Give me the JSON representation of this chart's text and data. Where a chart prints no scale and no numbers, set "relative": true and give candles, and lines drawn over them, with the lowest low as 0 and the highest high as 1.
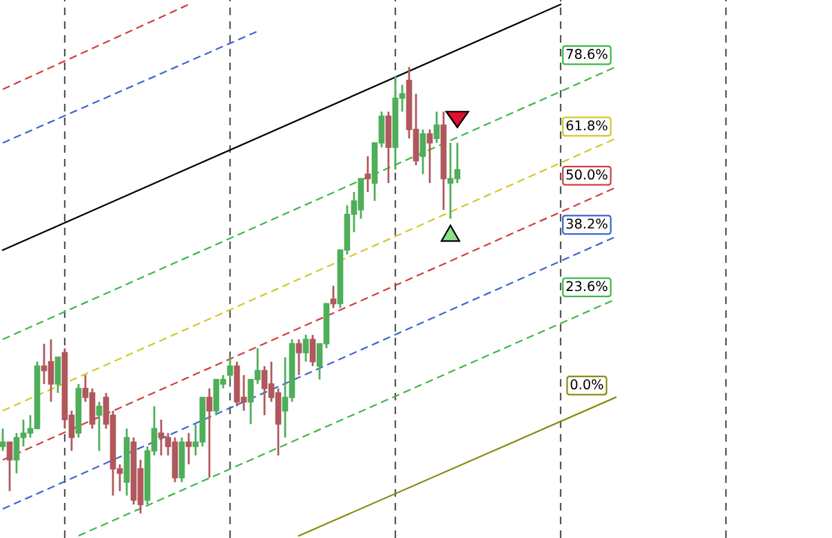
{
  "chart_data": {
    "type": "candlestick",
    "relative": true,
    "grid": "x",
    "legend": false,
    "categories": [
      null,
      null,
      null,
      null,
      null,
      null,
      null,
      null,
      null,
      null,
      null,
      null,
      null,
      null,
      null,
      null,
      null,
      null,
      null,
      null,
      null,
      null,
      null,
      null,
      null,
      null,
      null,
      null,
      null,
      null,
      null,
      null,
      null,
      null,
      null,
      null,
      null,
      null,
      null,
      null,
      null,
      null,
      null,
      null,
      null,
      null,
      null,
      null,
      null,
      null,
      null,
      null,
      null,
      null,
      null,
      null,
      null,
      null,
      null,
      null,
      null,
      null,
      null,
      null,
      null,
      null,
      null,
      null,
      null,
      null,
      null,
      null,
      null,
      null,
      null,
      null,
      null,
      null,
      null,
      null,
      null,
      null,
      null,
      null,
      null,
      null,
      null,
      null,
      null,
      null
    ],
    "ohlc": [
      [
        0.15,
        0.19,
        0.14,
        0.16
      ],
      [
        0.16,
        0.16,
        0.05,
        0.12
      ],
      [
        0.12,
        0.18,
        0.09,
        0.17
      ],
      [
        0.17,
        0.21,
        0.15,
        0.18
      ],
      [
        0.18,
        0.22,
        0.17,
        0.19
      ],
      [
        0.19,
        0.34,
        0.19,
        0.33
      ],
      [
        0.33,
        0.38,
        0.29,
        0.32
      ],
      [
        0.34,
        0.39,
        0.25,
        0.29
      ],
      [
        0.29,
        0.35,
        0.27,
        0.35
      ],
      [
        0.36,
        0.37,
        0.19,
        0.21
      ],
      [
        0.22,
        0.23,
        0.14,
        0.17
      ],
      [
        0.18,
        0.29,
        0.17,
        0.28
      ],
      [
        0.28,
        0.31,
        0.25,
        0.26
      ],
      [
        0.27,
        0.28,
        0.19,
        0.2
      ],
      [
        0.22,
        0.25,
        0.14,
        0.24
      ],
      [
        0.26,
        0.27,
        0.19,
        0.2
      ],
      [
        0.22,
        0.23,
        0.04,
        0.1
      ],
      [
        0.1,
        0.11,
        0.05,
        0.09
      ],
      [
        0.07,
        0.19,
        0.04,
        0.17
      ],
      [
        0.16,
        0.17,
        0.02,
        0.03
      ],
      [
        0.1,
        0.12,
        0.0,
        0.02
      ],
      [
        0.03,
        0.15,
        0.02,
        0.14
      ],
      [
        0.14,
        0.24,
        0.13,
        0.19
      ],
      [
        0.18,
        0.21,
        0.13,
        0.17
      ],
      [
        0.17,
        0.18,
        0.13,
        0.15
      ],
      [
        0.16,
        0.17,
        0.07,
        0.08
      ],
      [
        0.08,
        0.17,
        0.07,
        0.16
      ],
      [
        0.16,
        0.18,
        0.11,
        0.15
      ],
      [
        0.15,
        0.2,
        0.13,
        0.16
      ],
      [
        0.16,
        0.26,
        0.15,
        0.26
      ],
      [
        0.26,
        0.28,
        0.08,
        0.23
      ],
      [
        0.23,
        0.3,
        0.22,
        0.3
      ],
      [
        0.29,
        0.31,
        0.28,
        0.3
      ],
      [
        0.31,
        0.35,
        0.3,
        0.33
      ],
      [
        0.33,
        0.34,
        0.24,
        0.25
      ],
      [
        0.26,
        0.31,
        0.23,
        0.25
      ],
      [
        0.25,
        0.3,
        0.2,
        0.3
      ],
      [
        0.3,
        0.37,
        0.29,
        0.32
      ],
      [
        0.32,
        0.33,
        0.22,
        0.28
      ],
      [
        0.29,
        0.34,
        0.25,
        0.26
      ],
      [
        0.27,
        0.28,
        0.13,
        0.2
      ],
      [
        0.23,
        0.35,
        0.17,
        0.26
      ],
      [
        0.26,
        0.39,
        0.25,
        0.38
      ],
      [
        0.38,
        0.39,
        0.31,
        0.36
      ],
      [
        0.36,
        0.4,
        0.34,
        0.39
      ],
      [
        0.39,
        0.4,
        0.33,
        0.34
      ],
      [
        0.33,
        0.38,
        0.3,
        0.38
      ],
      [
        0.38,
        0.47,
        0.37,
        0.47
      ],
      [
        0.48,
        0.51,
        0.46,
        0.47
      ],
      [
        0.47,
        0.59,
        0.46,
        0.59
      ],
      [
        0.59,
        0.69,
        0.58,
        0.67
      ],
      [
        0.67,
        0.72,
        0.63,
        0.7
      ],
      [
        0.68,
        0.75,
        0.66,
        0.75
      ],
      [
        0.76,
        0.8,
        0.72,
        0.75
      ],
      [
        0.74,
        0.83,
        0.7,
        0.83
      ],
      [
        0.83,
        0.9,
        0.82,
        0.89
      ],
      [
        0.89,
        0.9,
        0.74,
        0.82
      ],
      [
        0.82,
        0.98,
        0.77,
        0.93
      ],
      [
        0.93,
        0.96,
        0.9,
        0.94
      ],
      [
        0.97,
        1.0,
        0.84,
        0.86
      ],
      [
        0.86,
        0.94,
        0.78,
        0.79
      ],
      [
        0.8,
        0.86,
        0.76,
        0.85
      ],
      [
        0.85,
        0.86,
        0.74,
        0.83
      ],
      [
        0.84,
        0.9,
        0.83,
        0.87
      ],
      [
        0.87,
        0.9,
        0.68,
        0.75
      ],
      [
        0.74,
        0.83,
        0.66,
        0.75
      ],
      [
        0.75,
        0.83,
        0.74,
        0.77
      ],
      null,
      null,
      null,
      null,
      null,
      null,
      null,
      null,
      null,
      null,
      null,
      null,
      null,
      null,
      null,
      null,
      null,
      null,
      null,
      null,
      null,
      null,
      null
    ],
    "series": [
      {
        "type": "line",
        "name": "0.0%",
        "color": "#8a8a10",
        "line_style": "solid",
        "values": [
          null,
          null,
          null,
          null,
          null,
          null,
          null,
          null,
          null,
          null,
          null,
          null,
          null,
          null,
          null,
          null,
          null,
          null,
          null,
          null,
          null,
          null,
          null,
          null,
          null,
          null,
          null,
          null,
          null,
          null,
          null,
          null,
          null,
          null,
          null,
          null,
          null,
          null,
          null,
          null,
          null,
          null,
          null,
          -0.05,
          null,
          null,
          null,
          null,
          null,
          null,
          null,
          null,
          null,
          null,
          null,
          null,
          null,
          null,
          null,
          null,
          null,
          null,
          null,
          null,
          null,
          null,
          null,
          null,
          null,
          null,
          null,
          null,
          null,
          null,
          null,
          null,
          null,
          null,
          null,
          null,
          null,
          null,
          null,
          null,
          null,
          null,
          null,
          null,
          null,
          0.26
        ]
      },
      {
        "type": "line",
        "name": "23.6%",
        "color": "#3cb846",
        "line_style": "dashed",
        "values": [
          null,
          null,
          null,
          null,
          null,
          null,
          null,
          null,
          null,
          null,
          null,
          -0.05,
          null,
          null,
          null,
          null,
          null,
          null,
          null,
          null,
          null,
          null,
          null,
          null,
          null,
          null,
          null,
          null,
          null,
          null,
          null,
          null,
          null,
          null,
          null,
          null,
          null,
          null,
          null,
          null,
          null,
          null,
          null,
          null,
          null,
          null,
          null,
          null,
          null,
          null,
          null,
          null,
          null,
          null,
          null,
          null,
          null,
          null,
          null,
          null,
          null,
          null,
          null,
          null,
          null,
          null,
          null,
          null,
          null,
          null,
          null,
          null,
          null,
          null,
          null,
          null,
          null,
          null,
          null,
          null,
          null,
          null,
          null,
          null,
          null,
          null,
          null,
          null,
          null,
          0.48
        ]
      },
      {
        "type": "line",
        "name": "38.2%",
        "color": "#3c64d2",
        "line_style": "dashed",
        "values": [
          0.01,
          null,
          null,
          null,
          null,
          null,
          null,
          null,
          null,
          null,
          null,
          null,
          null,
          null,
          null,
          null,
          null,
          null,
          null,
          null,
          null,
          null,
          null,
          null,
          null,
          null,
          null,
          null,
          null,
          null,
          null,
          null,
          null,
          null,
          null,
          null,
          null,
          null,
          null,
          null,
          null,
          null,
          null,
          null,
          null,
          null,
          null,
          null,
          null,
          null,
          null,
          null,
          null,
          null,
          null,
          null,
          null,
          null,
          null,
          null,
          null,
          null,
          null,
          null,
          null,
          null,
          null,
          null,
          null,
          null,
          null,
          null,
          null,
          null,
          null,
          null,
          null,
          null,
          null,
          null,
          null,
          null,
          null,
          null,
          null,
          null,
          null,
          null,
          null,
          0.62
        ]
      },
      {
        "type": "line",
        "name": "50.0%",
        "color": "#d23c3c",
        "line_style": "dashed",
        "values": [
          0.12,
          null,
          null,
          null,
          null,
          null,
          null,
          null,
          null,
          null,
          null,
          null,
          null,
          null,
          null,
          null,
          null,
          null,
          null,
          null,
          null,
          null,
          null,
          null,
          null,
          null,
          null,
          null,
          null,
          null,
          null,
          null,
          null,
          null,
          null,
          null,
          null,
          null,
          null,
          null,
          null,
          null,
          null,
          null,
          null,
          null,
          null,
          null,
          null,
          null,
          null,
          null,
          null,
          null,
          null,
          null,
          null,
          null,
          null,
          null,
          null,
          null,
          null,
          null,
          null,
          null,
          null,
          null,
          null,
          null,
          null,
          null,
          null,
          null,
          null,
          null,
          null,
          null,
          null,
          null,
          null,
          null,
          null,
          null,
          null,
          null,
          null,
          null,
          null,
          0.73
        ]
      },
      {
        "type": "line",
        "name": "61.8%",
        "color": "#d2c828",
        "line_style": "dashed",
        "values": [
          0.23,
          null,
          null,
          null,
          null,
          null,
          null,
          null,
          null,
          null,
          null,
          null,
          null,
          null,
          null,
          null,
          null,
          null,
          null,
          null,
          null,
          null,
          null,
          null,
          null,
          null,
          null,
          null,
          null,
          null,
          null,
          null,
          null,
          null,
          null,
          null,
          null,
          null,
          null,
          null,
          null,
          null,
          null,
          null,
          null,
          null,
          null,
          null,
          null,
          null,
          null,
          null,
          null,
          null,
          null,
          null,
          null,
          null,
          null,
          null,
          null,
          null,
          null,
          null,
          null,
          null,
          null,
          null,
          null,
          null,
          null,
          null,
          null,
          null,
          null,
          null,
          null,
          null,
          null,
          null,
          null,
          null,
          null,
          null,
          null,
          null,
          null,
          null,
          null,
          0.84
        ]
      },
      {
        "type": "line",
        "name": "78.6%",
        "color": "#3cb846",
        "line_style": "dashed",
        "values": [
          0.39,
          null,
          null,
          null,
          null,
          null,
          null,
          null,
          null,
          null,
          null,
          null,
          null,
          null,
          null,
          null,
          null,
          null,
          null,
          null,
          null,
          null,
          null,
          null,
          null,
          null,
          null,
          null,
          null,
          null,
          null,
          null,
          null,
          null,
          null,
          null,
          null,
          null,
          null,
          null,
          null,
          null,
          null,
          null,
          null,
          null,
          null,
          null,
          null,
          null,
          null,
          null,
          null,
          null,
          null,
          null,
          null,
          null,
          null,
          null,
          null,
          null,
          null,
          null,
          null,
          null,
          null,
          null,
          null,
          null,
          null,
          null,
          null,
          null,
          null,
          null,
          null,
          null,
          null,
          null,
          null,
          null,
          null,
          null,
          null,
          null,
          null,
          null,
          null,
          1.0
        ]
      },
      {
        "type": "line",
        "color": "#000000",
        "line_style": "solid",
        "values": [
          0.59,
          null,
          null,
          null,
          null,
          null,
          null,
          null,
          null,
          null,
          null,
          null,
          null,
          null,
          null,
          null,
          null,
          null,
          null,
          null,
          null,
          null,
          null,
          null,
          null,
          null,
          null,
          null,
          null,
          null,
          null,
          null,
          null,
          null,
          null,
          null,
          null,
          null,
          null,
          null,
          null,
          null,
          null,
          null,
          null,
          null,
          null,
          null,
          null,
          null,
          null,
          null,
          null,
          null,
          null,
          null,
          null,
          null,
          null,
          null,
          null,
          null,
          null,
          null,
          null,
          null,
          null,
          null,
          null,
          null,
          null,
          null,
          null,
          null,
          null,
          null,
          null,
          null,
          null,
          null,
          null,
          1.14,
          null,
          null,
          null,
          null,
          null,
          null,
          null,
          null
        ]
      },
      {
        "type": "line",
        "color": "#3c64d2",
        "line_style": "dashed",
        "values": [
          0.83,
          null,
          null,
          null,
          null,
          null,
          null,
          null,
          null,
          null,
          null,
          null,
          null,
          null,
          null,
          null,
          null,
          null,
          null,
          null,
          null,
          null,
          null,
          null,
          null,
          null,
          null,
          null,
          null,
          null,
          null,
          null,
          null,
          null,
          null,
          null,
          null,
          1.08,
          null,
          null,
          null,
          null,
          null,
          null,
          null,
          null,
          null,
          null,
          null,
          null,
          null,
          null,
          null,
          null,
          null,
          null,
          null,
          null,
          null,
          null,
          null,
          null,
          null,
          null,
          null,
          null,
          null,
          null,
          null,
          null,
          null,
          null,
          null,
          null,
          null,
          null,
          null,
          null,
          null,
          null,
          null,
          null,
          null,
          null,
          null,
          null,
          null,
          null,
          null,
          null
        ]
      },
      {
        "type": "line",
        "color": "#d23c3c",
        "line_style": "dashed",
        "values": [
          0.95,
          null,
          null,
          null,
          null,
          null,
          null,
          null,
          null,
          null,
          null,
          null,
          null,
          null,
          null,
          null,
          null,
          null,
          null,
          null,
          null,
          null,
          null,
          null,
          null,
          null,
          null,
          1.14,
          null,
          null,
          null,
          null,
          null,
          null,
          null,
          null,
          null,
          null,
          null,
          null,
          null,
          null,
          null,
          null,
          null,
          null,
          null,
          null,
          null,
          null,
          null,
          null,
          null,
          null,
          null,
          null,
          null,
          null,
          null,
          null,
          null,
          null,
          null,
          null,
          null,
          null,
          null,
          null,
          null,
          null,
          null,
          null,
          null,
          null,
          null,
          null,
          null,
          null,
          null,
          null,
          null,
          null,
          null,
          null,
          null,
          null,
          null,
          null,
          null,
          null
        ]
      }
    ]
  }
}
